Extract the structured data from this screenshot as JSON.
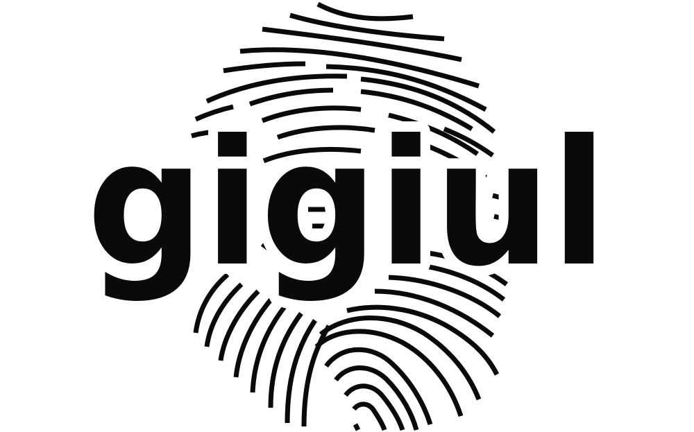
{
  "logo": {
    "wordmark": "gigiul",
    "ink_color": "#0a0a0a",
    "background_color": "#ffffff",
    "emblem": "fingerprint-icon"
  }
}
